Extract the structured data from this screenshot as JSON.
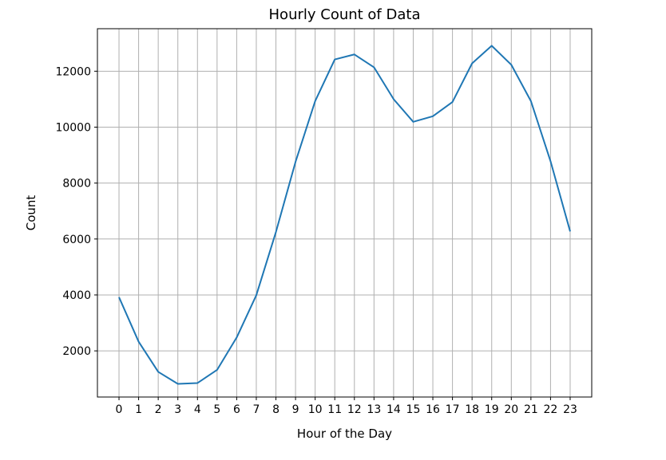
{
  "chart_data": {
    "type": "line",
    "title": "Hourly Count of Data",
    "xlabel": "Hour of the Day",
    "ylabel": "Count",
    "x": [
      0,
      1,
      2,
      3,
      4,
      5,
      6,
      7,
      8,
      9,
      10,
      11,
      12,
      13,
      14,
      15,
      16,
      17,
      18,
      19,
      20,
      21,
      22,
      23
    ],
    "x_tick_labels": [
      "0",
      "1",
      "2",
      "3",
      "4",
      "5",
      "6",
      "7",
      "8",
      "9",
      "10",
      "11",
      "12",
      "13",
      "14",
      "15",
      "16",
      "17",
      "18",
      "19",
      "20",
      "21",
      "22",
      "23"
    ],
    "y_ticks": [
      2000,
      4000,
      6000,
      8000,
      10000,
      12000
    ],
    "y_tick_labels": [
      "2000",
      "4000",
      "6000",
      "8000",
      "10000",
      "12000"
    ],
    "series": [
      {
        "values": [
          3920,
          2330,
          1250,
          820,
          850,
          1320,
          2480,
          3990,
          6250,
          8760,
          10930,
          12420,
          12600,
          12140,
          11000,
          10190,
          10390,
          10900,
          12280,
          12910,
          12230,
          10930,
          8780,
          6270
        ],
        "color": "#1f77b4"
      }
    ],
    "xlim": [
      -1.1,
      24.1
    ],
    "ylim": [
      350,
      13520
    ],
    "grid": true,
    "legend": "none"
  }
}
